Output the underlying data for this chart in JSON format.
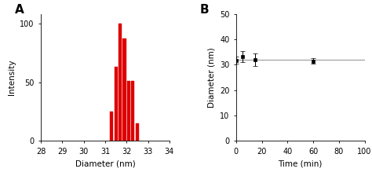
{
  "panel_A": {
    "label": "A",
    "bar_centers": [
      31.3,
      31.5,
      31.7,
      31.9,
      32.1,
      32.3,
      32.5
    ],
    "bar_heights": [
      25,
      63,
      100,
      87,
      51,
      51,
      15
    ],
    "bar_width": 0.15,
    "bar_color": "#dd0000",
    "xlabel": "Diameter (nm)",
    "ylabel": "Intensity",
    "xlim": [
      28,
      34
    ],
    "ylim": [
      0,
      108
    ],
    "xticks": [
      28,
      29,
      30,
      31,
      32,
      33,
      34
    ],
    "yticks": [
      0,
      50,
      100
    ]
  },
  "panel_B": {
    "label": "B",
    "x": [
      0,
      5,
      15,
      60
    ],
    "y": [
      31.8,
      33.3,
      32.0,
      31.5
    ],
    "yerr": [
      1.3,
      2.2,
      2.5,
      1.0
    ],
    "hline_y": 32.0,
    "xlabel": "Time (min)",
    "ylabel": "Diameter (nm)",
    "xlim": [
      0,
      100
    ],
    "ylim": [
      0,
      50
    ],
    "xticks": [
      0,
      20,
      40,
      60,
      80,
      100
    ],
    "yticks": [
      0,
      10,
      20,
      30,
      40,
      50
    ],
    "marker_color": "black",
    "hline_color": "#999999"
  }
}
